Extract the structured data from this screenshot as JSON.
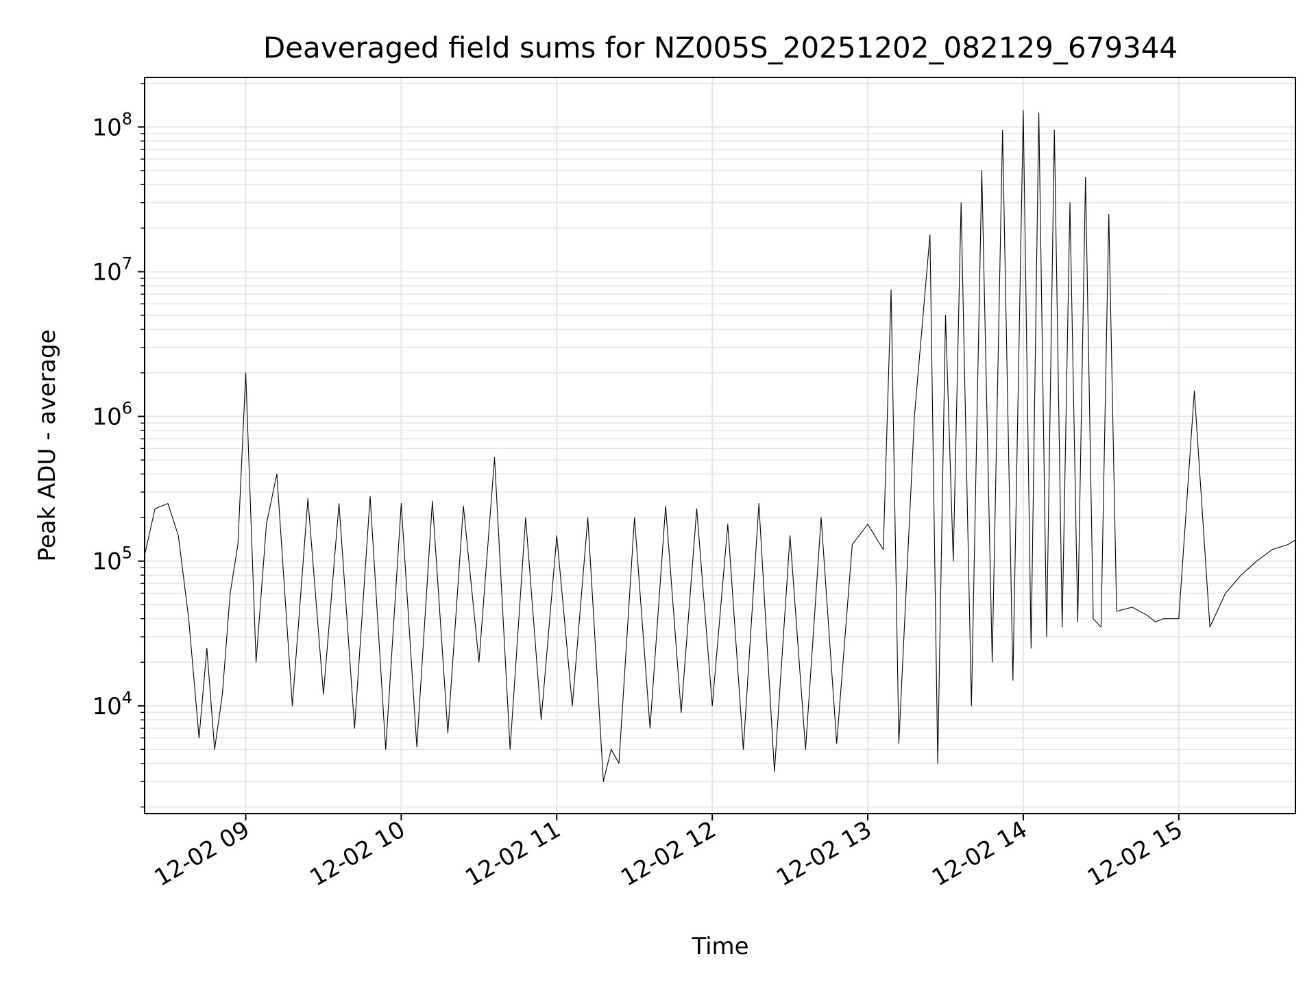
{
  "chart_data": {
    "type": "line",
    "title": "Deaveraged field sums for NZ005S_20251202_082129_679344",
    "xlabel": "Time",
    "ylabel": "Peak ADU - average",
    "xscale": "time",
    "yscale": "log",
    "xlim": [
      "12-02 08:21",
      "12-02 15:45"
    ],
    "ylim": [
      1800,
      220000000
    ],
    "x_ticks": [
      "12-02 09",
      "12-02 10",
      "12-02 11",
      "12-02 12",
      "12-02 13",
      "12-02 14",
      "12-02 15"
    ],
    "y_ticks": [
      {
        "value": 10000,
        "base": "10",
        "exp": "4"
      },
      {
        "value": 100000,
        "base": "10",
        "exp": "5"
      },
      {
        "value": 1000000,
        "base": "10",
        "exp": "6"
      },
      {
        "value": 10000000,
        "base": "10",
        "exp": "7"
      },
      {
        "value": 100000000,
        "base": "10",
        "exp": "8"
      }
    ],
    "grid": true,
    "line_color": "#000000",
    "series": [
      {
        "name": "",
        "x": [
          "12-02 08:21",
          "12-02 08:25",
          "12-02 08:30",
          "12-02 08:34",
          "12-02 08:38",
          "12-02 08:42",
          "12-02 08:45",
          "12-02 08:48",
          "12-02 08:51",
          "12-02 08:54",
          "12-02 08:57",
          "12-02 09:00",
          "12-02 09:04",
          "12-02 09:08",
          "12-02 09:12",
          "12-02 09:18",
          "12-02 09:24",
          "12-02 09:30",
          "12-02 09:36",
          "12-02 09:42",
          "12-02 09:48",
          "12-02 09:54",
          "12-02 10:00",
          "12-02 10:06",
          "12-02 10:12",
          "12-02 10:18",
          "12-02 10:24",
          "12-02 10:30",
          "12-02 10:36",
          "12-02 10:42",
          "12-02 10:48",
          "12-02 10:54",
          "12-02 11:00",
          "12-02 11:06",
          "12-02 11:12",
          "12-02 11:18",
          "12-02 11:21",
          "12-02 11:24",
          "12-02 11:30",
          "12-02 11:36",
          "12-02 11:42",
          "12-02 11:48",
          "12-02 11:54",
          "12-02 12:00",
          "12-02 12:06",
          "12-02 12:12",
          "12-02 12:18",
          "12-02 12:24",
          "12-02 12:30",
          "12-02 12:36",
          "12-02 12:42",
          "12-02 12:48",
          "12-02 12:54",
          "12-02 13:00",
          "12-02 13:06",
          "12-02 13:09",
          "12-02 13:12",
          "12-02 13:18",
          "12-02 13:24",
          "12-02 13:27",
          "12-02 13:30",
          "12-02 13:33",
          "12-02 13:36",
          "12-02 13:40",
          "12-02 13:44",
          "12-02 13:48",
          "12-02 13:52",
          "12-02 13:56",
          "12-02 14:00",
          "12-02 14:03",
          "12-02 14:06",
          "12-02 14:09",
          "12-02 14:12",
          "12-02 14:15",
          "12-02 14:18",
          "12-02 14:21",
          "12-02 14:24",
          "12-02 14:27",
          "12-02 14:30",
          "12-02 14:33",
          "12-02 14:36",
          "12-02 14:42",
          "12-02 14:48",
          "12-02 14:51",
          "12-02 14:54",
          "12-02 15:00",
          "12-02 15:06",
          "12-02 15:12",
          "12-02 15:18",
          "12-02 15:24",
          "12-02 15:30",
          "12-02 15:36",
          "12-02 15:42",
          "12-02 15:45"
        ],
        "values": [
          110000,
          230000,
          250000,
          150000,
          40000,
          6000,
          25000,
          5000,
          12000,
          60000,
          130000,
          2000000,
          20000,
          180000,
          400000,
          10000,
          270000,
          12000,
          250000,
          7000,
          280000,
          5000,
          250000,
          5200,
          260000,
          6500,
          240000,
          20000,
          520000,
          5000,
          200000,
          8000,
          150000,
          10000,
          200000,
          3000,
          5000,
          4000,
          200000,
          7000,
          240000,
          9000,
          230000,
          10000,
          180000,
          5000,
          250000,
          3500,
          150000,
          5000,
          200000,
          5500,
          130000,
          180000,
          120000,
          7500000,
          5500,
          1000000,
          18000000,
          4000,
          5000000,
          100000,
          30000000,
          10000,
          50000000,
          20000,
          95000000,
          15000,
          130000000,
          25000,
          125000000,
          30000,
          95000000,
          35000,
          30000000,
          38000,
          45000000,
          40000,
          35000,
          25000000,
          45000,
          48000,
          42000,
          38000,
          40000,
          40000,
          1500000,
          35000,
          60000,
          80000,
          100000,
          120000,
          130000,
          140000
        ]
      }
    ]
  }
}
